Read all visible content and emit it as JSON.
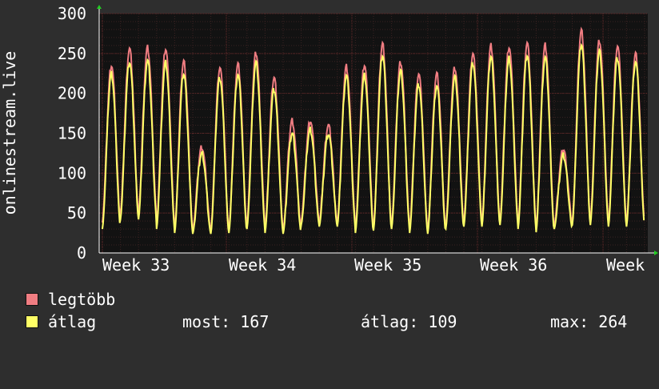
{
  "chart_data": {
    "type": "line",
    "ylabel": "onlinestream.live",
    "ylim": [
      0,
      300
    ],
    "yticks": [
      0,
      50,
      100,
      150,
      200,
      250,
      300
    ],
    "x_tick_labels": [
      "Week 33",
      "Week 34",
      "Week 35",
      "Week 36",
      "Week"
    ],
    "grid": true,
    "series": [
      {
        "name": "legtöbb",
        "color": "#f07d82",
        "daily_peaks": [
          236,
          256,
          257,
          256,
          240,
          133,
          233,
          236,
          251,
          220,
          166,
          166,
          160,
          233,
          236,
          262,
          240,
          225,
          224,
          232,
          250,
          260,
          259,
          263,
          260,
          130,
          279,
          267,
          260,
          249
        ],
        "daily_mins": [
          38,
          50,
          50,
          35,
          30,
          28,
          28,
          30,
          38,
          30,
          28,
          40,
          38,
          38,
          30,
          33,
          35,
          30,
          28,
          35,
          40,
          38,
          40,
          35,
          30,
          35,
          40,
          40,
          38,
          38
        ]
      },
      {
        "name": "átlag",
        "color": "#ffff66",
        "daily_peaks": [
          225,
          240,
          241,
          238,
          225,
          125,
          220,
          224,
          238,
          205,
          150,
          155,
          150,
          222,
          222,
          248,
          228,
          212,
          210,
          220,
          238,
          246,
          244,
          249,
          245,
          122,
          262,
          253,
          245,
          240
        ],
        "daily_mins": [
          30,
          42,
          42,
          30,
          25,
          24,
          24,
          25,
          30,
          25,
          24,
          35,
          33,
          33,
          25,
          28,
          30,
          25,
          24,
          30,
          33,
          33,
          35,
          30,
          26,
          30,
          35,
          35,
          33,
          33
        ]
      }
    ]
  },
  "legend": {
    "max_label": "legtöbb",
    "avg_label": "átlag",
    "now_text": "most: 167",
    "avg_text": "átlag: 109",
    "max_text": "max: 264"
  },
  "colors": {
    "background": "#2e2e2e",
    "plot_bg": "#121212",
    "grid": "#5a2a2a",
    "axis": "#ffffff"
  }
}
